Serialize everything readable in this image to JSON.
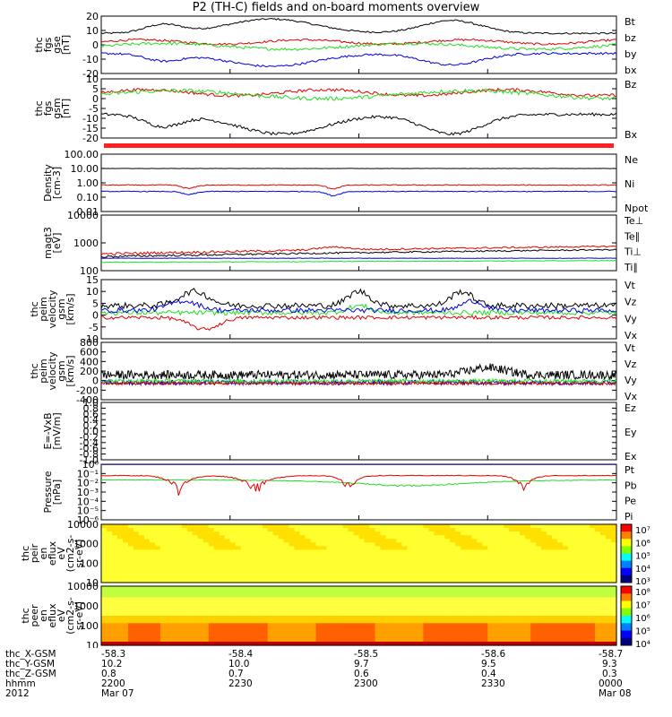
{
  "title": "P2 (TH-C) fields and on-board moments overview",
  "colors": {
    "black": "#000000",
    "red": "#e00000",
    "green": "#22dd22",
    "blue": "#0000e0",
    "navy": "#000080"
  },
  "chart_data": [
    {
      "id": "p1",
      "type": "line",
      "ylabel": [
        "thc",
        "fgs",
        "gse",
        "[nT]"
      ],
      "ylim": [
        -20,
        20
      ],
      "yticks": [
        "20",
        "10",
        "0",
        "-10",
        "-20"
      ],
      "legend": [
        {
          "label": "Bt",
          "color": "#000000"
        },
        {
          "label": "bz",
          "color": "#e00000"
        },
        {
          "label": "by",
          "color": "#22dd22"
        },
        {
          "label": "bx",
          "color": "#0000e0"
        }
      ]
    },
    {
      "id": "p2",
      "type": "line",
      "ylabel": [
        "thc",
        "fgs",
        "gsm",
        "[nT]"
      ],
      "ylim": [
        -20,
        10
      ],
      "yticks": [
        "10",
        "5",
        "0",
        "-5",
        "-10",
        "-15",
        "-20"
      ],
      "legend": [
        {
          "label": "Bz",
          "color": "#e00000"
        },
        {
          "label": "Bx",
          "color": "#22dd22"
        }
      ]
    },
    {
      "id": "p4",
      "type": "line",
      "ylabel": [
        "Density",
        "[cm-3]"
      ],
      "scale": "log",
      "yticks": [
        "100.00",
        "10.00",
        "1.00",
        "0.10",
        "0.01"
      ],
      "legend": [
        {
          "label": "Ne",
          "color": "#e00000"
        },
        {
          "label": "Ni",
          "color": "#000000"
        },
        {
          "label": "Npot",
          "color": "#0000e0"
        }
      ]
    },
    {
      "id": "p5",
      "type": "line",
      "ylabel": [
        "magt3",
        "[eV]"
      ],
      "scale": "log",
      "yticks": [
        "10000",
        "1000",
        "100"
      ],
      "legend": [
        {
          "label": "Te⊥",
          "color": "#e00000"
        },
        {
          "label": "Te∥",
          "color": "#000000"
        },
        {
          "label": "Ti⊥",
          "color": "#e00000"
        },
        {
          "label": "Ti∥",
          "color": "#22dd22"
        }
      ]
    },
    {
      "id": "p6",
      "type": "line",
      "ylabel": [
        "thc",
        "peim",
        "velocity",
        "gsm",
        "[km/s]"
      ],
      "ylim": [
        -10,
        15
      ],
      "yticks": [
        "15",
        "10",
        "5",
        "0",
        "-5",
        "-10"
      ],
      "legend": [
        {
          "label": "Vt",
          "color": "#000000"
        },
        {
          "label": "Vz",
          "color": "#e00000"
        },
        {
          "label": "Vy",
          "color": "#22dd22"
        },
        {
          "label": "Vx",
          "color": "#0000e0"
        }
      ]
    },
    {
      "id": "p7",
      "type": "line",
      "ylabel": [
        "thc",
        "peim",
        "velocity",
        "gsm",
        "[km/s]"
      ],
      "ylim": [
        -400,
        800
      ],
      "yticks": [
        "800",
        "600",
        "400",
        "200",
        "0",
        "-200",
        "-400"
      ],
      "legend": [
        {
          "label": "Vt",
          "color": "#000000"
        },
        {
          "label": "Vz",
          "color": "#e00000"
        },
        {
          "label": "Vy",
          "color": "#22dd22"
        },
        {
          "label": "Vx",
          "color": "#0000e0"
        }
      ]
    },
    {
      "id": "p8",
      "type": "line",
      "ylabel": [
        "E=-VxB",
        "[mV/m]"
      ],
      "ylim": [
        -1,
        1
      ],
      "yticks": [
        "1.0",
        "0.8",
        "0.6",
        "0.4",
        "0.2",
        "0.0",
        "-0.2",
        "-0.4",
        "-0.6",
        "-0.8",
        "-1.0"
      ],
      "legend": [
        {
          "label": "Ez",
          "color": "#e00000"
        },
        {
          "label": "Ey",
          "color": "#22dd22"
        },
        {
          "label": "Ex",
          "color": "#0000e0"
        }
      ]
    },
    {
      "id": "p9",
      "type": "line",
      "ylabel": [
        "Pressure",
        "[nPa]"
      ],
      "scale": "log",
      "yticks": [
        "10⁰",
        "10⁻¹",
        "10⁻²",
        "10⁻³",
        "10⁻⁴",
        "10⁻⁵",
        "10⁻⁶"
      ],
      "legend": [
        {
          "label": "Pt",
          "color": "#000000"
        },
        {
          "label": "Pb",
          "color": "#e00000"
        },
        {
          "label": "Pe",
          "color": "#22dd22"
        },
        {
          "label": "Pi",
          "color": "#0000e0"
        }
      ]
    },
    {
      "id": "p10",
      "type": "heatmap",
      "ylabel": [
        "thc",
        "peir",
        "en",
        "eflux",
        "eV",
        "(cm2-s-",
        "sr-eV)"
      ],
      "yticks": [
        "10000",
        "1000",
        "100",
        "10"
      ],
      "colorbar": [
        "10⁷",
        "10⁶",
        "10⁵",
        "10⁴",
        "10³"
      ]
    },
    {
      "id": "p11",
      "type": "heatmap",
      "ylabel": [
        "thc",
        "peer",
        "en",
        "eflux",
        "eV",
        "(cm2-s-",
        "sr-eV)"
      ],
      "yticks": [
        "10000",
        "1000",
        "100",
        "10"
      ],
      "colorbar": [
        "10⁸",
        "10⁷",
        "10⁶",
        "10⁵",
        "10⁴"
      ]
    }
  ],
  "footer": {
    "row_labels": [
      "thc_X-GSM",
      "thc_Y-GSM",
      "thc_Z-GSM",
      "hhmm",
      "2012"
    ],
    "columns": [
      {
        "x": "-58.3",
        "y": "10.2",
        "z": "0.8",
        "hhmm": "2200",
        "date": "Mar 07"
      },
      {
        "x": "-58.4",
        "y": "10.0",
        "z": "0.7",
        "hhmm": "2230",
        "date": ""
      },
      {
        "x": "-58.5",
        "y": "9.7",
        "z": "0.6",
        "hhmm": "2300",
        "date": ""
      },
      {
        "x": "-58.6",
        "y": "9.5",
        "z": "0.4",
        "hhmm": "2330",
        "date": ""
      },
      {
        "x": "-58.7",
        "y": "9.3",
        "z": "0.3",
        "hhmm": "0000",
        "date": "Mar 08"
      }
    ]
  }
}
